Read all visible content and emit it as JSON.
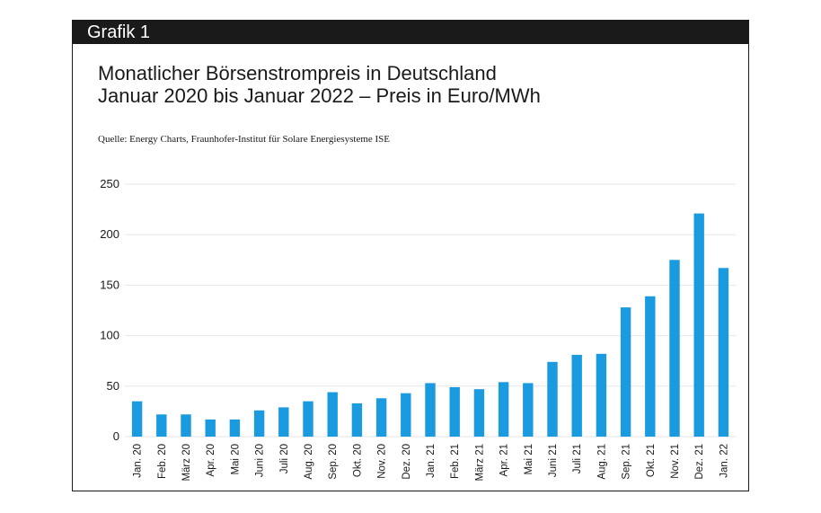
{
  "header": {
    "label": "Grafik 1"
  },
  "title_lines": [
    "Monatlicher Börsenstrompreis in Deutschland",
    "Januar 2020 bis Januar 2022 – Preis in Euro/MWh"
  ],
  "source": "Quelle: Energy Charts, Fraunhofer-Institut für Solare Energiesysteme ISE",
  "colors": {
    "bar": "#1a9be0",
    "grid": "#e6e6e6",
    "frame": "#1a1a1a"
  },
  "chart_data": {
    "type": "bar",
    "categories": [
      "Jan. 20",
      "Feb. 20",
      "März 20",
      "Apr. 20",
      "Mai 20",
      "Juni 20",
      "Juli 20",
      "Aug. 20",
      "Sep. 20",
      "Okt. 20",
      "Nov. 20",
      "Dez. 20",
      "Jan. 21",
      "Feb. 21",
      "März 21",
      "Apr. 21",
      "Mai 21",
      "Juni 21",
      "Juli 21",
      "Aug. 21",
      "Sep. 21",
      "Okt. 21",
      "Nov. 21",
      "Dez. 21",
      "Jan. 22"
    ],
    "values": [
      35,
      22,
      22,
      17,
      17,
      26,
      29,
      35,
      44,
      33,
      38,
      43,
      53,
      49,
      47,
      54,
      53,
      74,
      81,
      82,
      128,
      139,
      175,
      221,
      167
    ],
    "yticks": [
      0,
      50,
      100,
      150,
      200,
      250
    ],
    "ylim": [
      0,
      250
    ],
    "grid": true
  }
}
